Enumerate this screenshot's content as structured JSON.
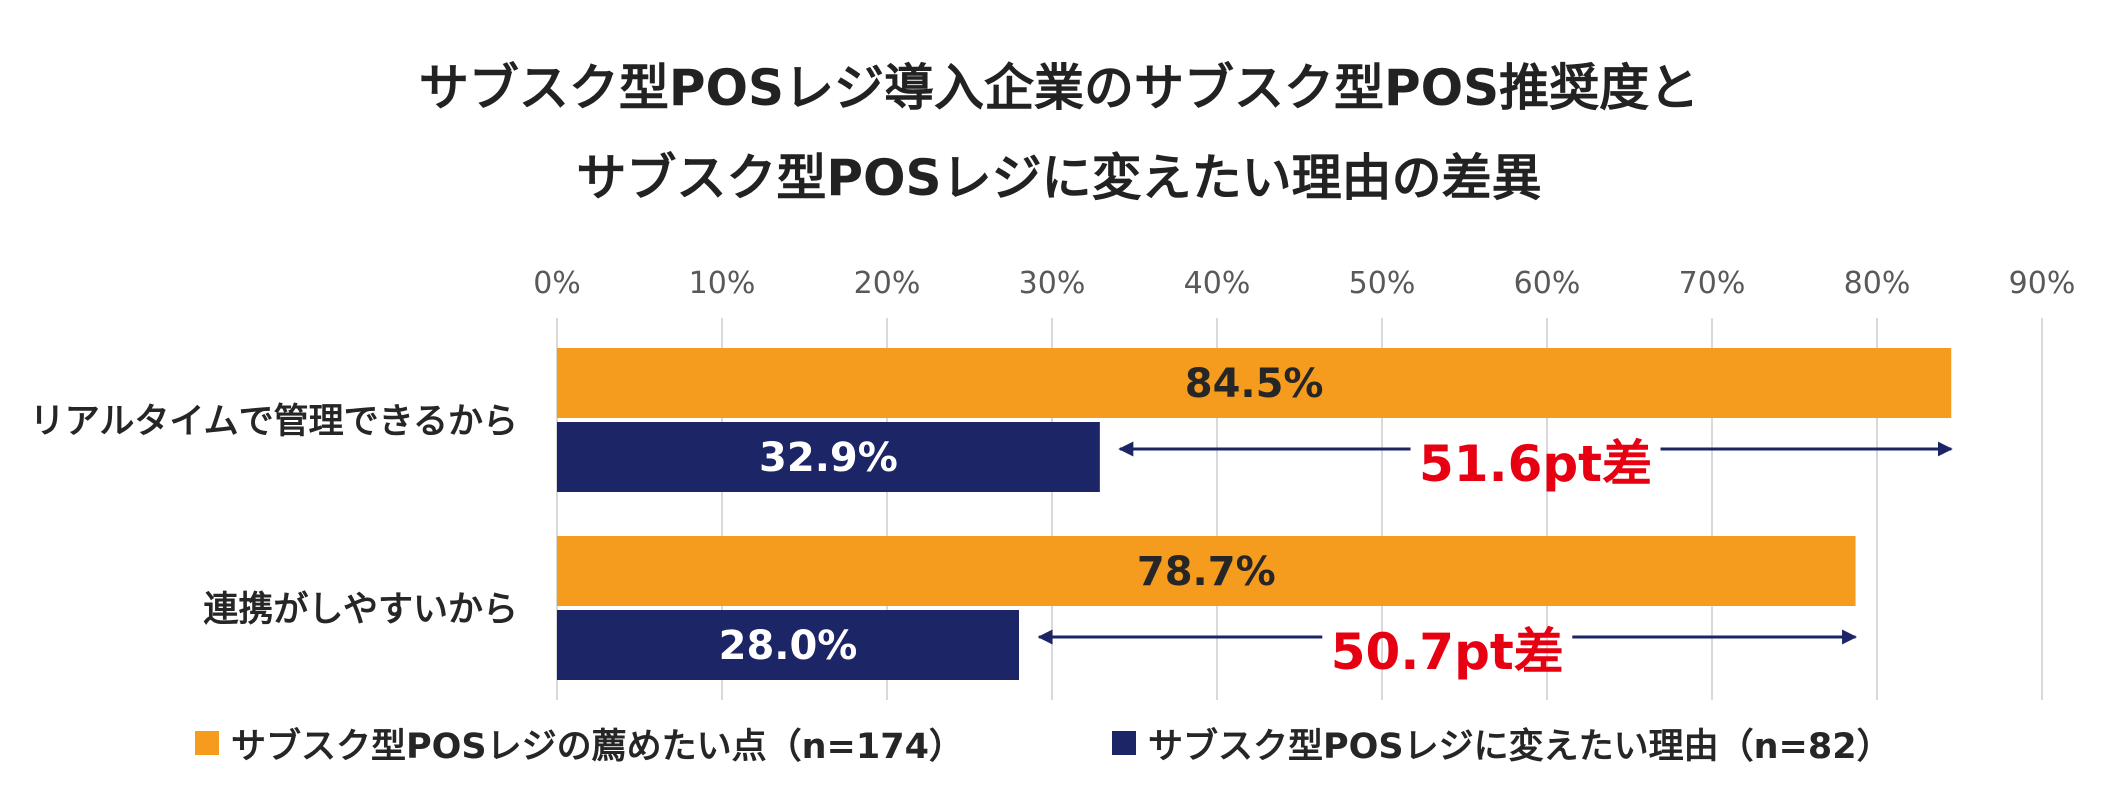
{
  "chart_data": {
    "type": "bar",
    "orientation": "horizontal",
    "title": "サブスク型POSレジ導入企業のサブスク型POS推奨度と",
    "subtitle": "サブスク型POSレジに変えたい理由の差異",
    "categories": [
      "リアルタイムで管理できるから",
      "連携がしやすいから"
    ],
    "series": [
      {
        "name": "サブスク型POSレジの薦めたい点（n=174）",
        "color": "#F59B1D",
        "values": [
          84.5,
          78.7
        ],
        "labels": [
          "84.5%",
          "78.7%"
        ],
        "label_color": "#262626"
      },
      {
        "name": "サブスク型POSレジに変えたい理由（n=82）",
        "color": "#1C2566",
        "values": [
          32.9,
          28.0
        ],
        "labels": [
          "32.9%",
          "28.0%"
        ],
        "label_color": "#FFFFFF"
      }
    ],
    "xlim": [
      0,
      90
    ],
    "xticks": [
      "0%",
      "10%",
      "20%",
      "30%",
      "40%",
      "50%",
      "60%",
      "70%",
      "80%",
      "90%"
    ],
    "grid": true,
    "legend_position": "bottom",
    "annotations": [
      {
        "text": "51.6pt差",
        "category_index": 0,
        "from": 32.9,
        "to": 84.5,
        "color": "#E60012"
      },
      {
        "text": "50.7pt差",
        "category_index": 1,
        "from": 28.0,
        "to": 78.7,
        "color": "#E60012"
      }
    ],
    "arrow_color": "#1C2566"
  }
}
